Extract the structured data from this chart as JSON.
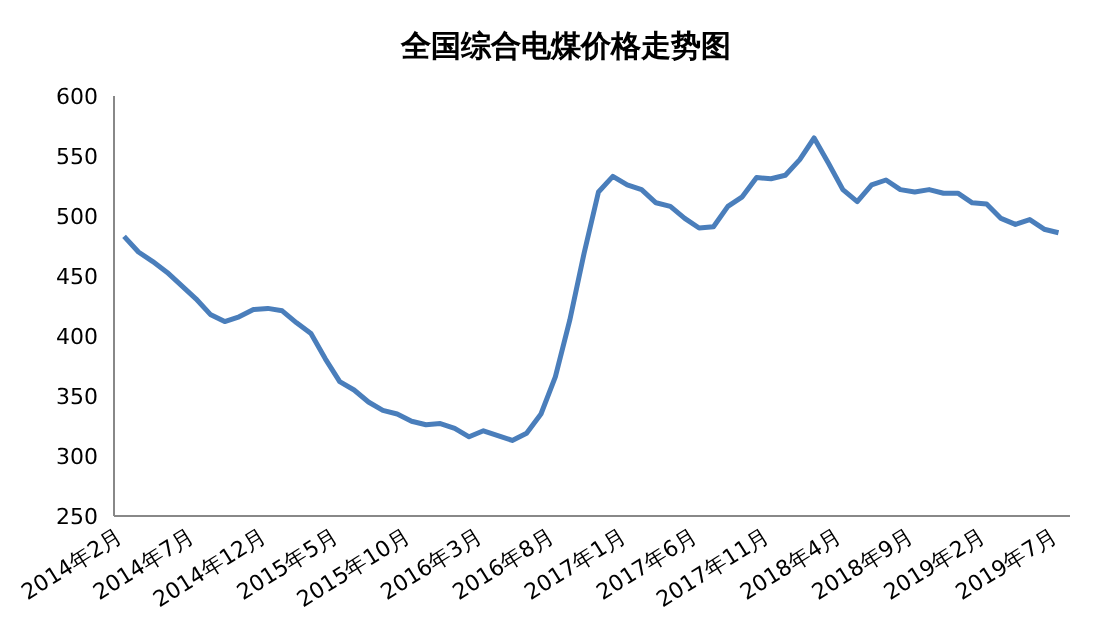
{
  "chart_data": {
    "type": "line",
    "title": "全国综合电煤价格走势图",
    "categories": [
      "2014年2月",
      null,
      null,
      null,
      null,
      "2014年7月",
      null,
      null,
      null,
      null,
      "2014年12月",
      null,
      null,
      null,
      null,
      "2015年5月",
      null,
      null,
      null,
      null,
      "2015年10月",
      null,
      null,
      null,
      null,
      "2016年3月",
      null,
      null,
      null,
      null,
      "2016年8月",
      null,
      null,
      null,
      null,
      "2017年1月",
      null,
      null,
      null,
      null,
      "2017年6月",
      null,
      null,
      null,
      null,
      "2017年11月",
      null,
      null,
      null,
      null,
      "2018年4月",
      null,
      null,
      null,
      null,
      "2018年9月",
      null,
      null,
      null,
      null,
      "2019年2月",
      null,
      null,
      null,
      null,
      "2019年7月"
    ],
    "series": [
      {
        "color": "#4a7ebb",
        "values": [
          483,
          470,
          462,
          453,
          442,
          431,
          418,
          412,
          416,
          422,
          423,
          421,
          411,
          402,
          381,
          362,
          355,
          345,
          338,
          335,
          329,
          326,
          327,
          323,
          316,
          321,
          317,
          313,
          319,
          335,
          366,
          413,
          469,
          520,
          533,
          526,
          522,
          511,
          508,
          498,
          490,
          491,
          508,
          516,
          532,
          531,
          534,
          547,
          565,
          544,
          522,
          512,
          526,
          530,
          522,
          520,
          522,
          519,
          519,
          511,
          510,
          498,
          493,
          497,
          489,
          486
        ]
      }
    ],
    "ylim": [
      250,
      600
    ],
    "yticks": [
      250,
      300,
      350,
      400,
      450,
      500,
      550,
      600
    ],
    "grid": false,
    "legend": false,
    "marker": "none",
    "line_style": "solid"
  }
}
